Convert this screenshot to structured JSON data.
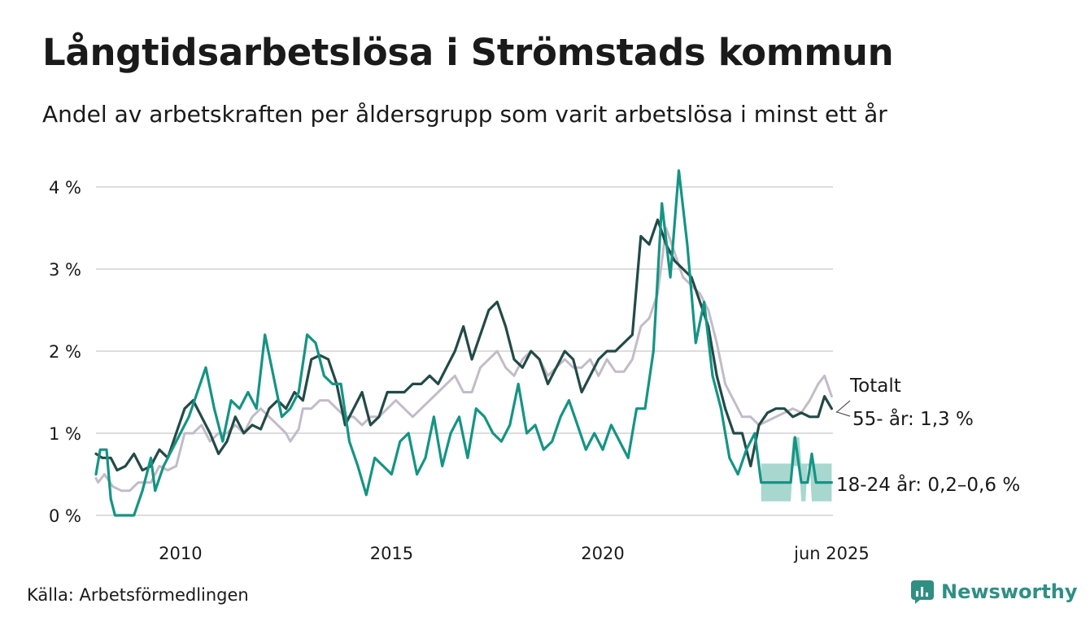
{
  "title": "Långtidsarbetslösa i Strömstads kommun",
  "subtitle": "Andel av arbetskraften per åldersgrupp som varit arbetslösa i minst ett år",
  "source": "Källa: Arbetsförmedlingen",
  "brand": "Newsworthy",
  "colors": {
    "total": "#c2bcc8",
    "age55": "#234a47",
    "age18": "#159484",
    "band": "#9fd3cb",
    "grid": "#dddddd",
    "brand": "#2f8f83"
  },
  "chart_data": {
    "type": "line",
    "title": "Långtidsarbetslösa i Strömstads kommun",
    "subtitle": "Andel av arbetskraften per åldersgrupp som varit arbetslösa i minst ett år",
    "xlim": [
      2008.0,
      2025.45
    ],
    "ylim": [
      0,
      4.2
    ],
    "yticks": [
      0,
      1,
      2,
      3,
      4
    ],
    "ytick_labels": [
      "0 %",
      "1 %",
      "2 %",
      "3 %",
      "4 %"
    ],
    "xticks": [
      2010,
      2015,
      2020,
      2025.42
    ],
    "xtick_labels": [
      "2010",
      "2015",
      "2020",
      "jun 2025"
    ],
    "grid": true,
    "series": [
      {
        "name": "Totalt",
        "key": "total",
        "label": "Totalt",
        "points": [
          [
            2008.0,
            0.45
          ],
          [
            2008.05,
            0.4
          ],
          [
            2008.2,
            0.5
          ],
          [
            2008.4,
            0.35
          ],
          [
            2008.6,
            0.3
          ],
          [
            2008.8,
            0.3
          ],
          [
            2009.0,
            0.4
          ],
          [
            2009.3,
            0.4
          ],
          [
            2009.5,
            0.6
          ],
          [
            2009.7,
            0.55
          ],
          [
            2009.9,
            0.6
          ],
          [
            2010.1,
            1.0
          ],
          [
            2010.3,
            1.0
          ],
          [
            2010.5,
            1.1
          ],
          [
            2010.7,
            0.9
          ],
          [
            2010.9,
            1.0
          ],
          [
            2011.1,
            1.0
          ],
          [
            2011.3,
            1.1
          ],
          [
            2011.5,
            1.0
          ],
          [
            2011.7,
            1.2
          ],
          [
            2011.9,
            1.3
          ],
          [
            2012.1,
            1.2
          ],
          [
            2012.3,
            1.1
          ],
          [
            2012.5,
            1.0
          ],
          [
            2012.6,
            0.9
          ],
          [
            2012.8,
            1.05
          ],
          [
            2012.9,
            1.3
          ],
          [
            2013.1,
            1.3
          ],
          [
            2013.3,
            1.4
          ],
          [
            2013.5,
            1.4
          ],
          [
            2013.7,
            1.3
          ],
          [
            2013.9,
            1.2
          ],
          [
            2014.1,
            1.2
          ],
          [
            2014.3,
            1.1
          ],
          [
            2014.5,
            1.2
          ],
          [
            2014.7,
            1.2
          ],
          [
            2014.9,
            1.3
          ],
          [
            2015.1,
            1.4
          ],
          [
            2015.3,
            1.3
          ],
          [
            2015.5,
            1.2
          ],
          [
            2015.7,
            1.3
          ],
          [
            2015.9,
            1.4
          ],
          [
            2016.1,
            1.5
          ],
          [
            2016.3,
            1.6
          ],
          [
            2016.5,
            1.7
          ],
          [
            2016.7,
            1.5
          ],
          [
            2016.9,
            1.5
          ],
          [
            2017.1,
            1.8
          ],
          [
            2017.3,
            1.9
          ],
          [
            2017.5,
            2.0
          ],
          [
            2017.7,
            1.8
          ],
          [
            2017.9,
            1.7
          ],
          [
            2018.1,
            1.9
          ],
          [
            2018.3,
            2.0
          ],
          [
            2018.5,
            1.9
          ],
          [
            2018.7,
            1.7
          ],
          [
            2018.9,
            1.8
          ],
          [
            2019.1,
            1.9
          ],
          [
            2019.3,
            1.8
          ],
          [
            2019.5,
            1.8
          ],
          [
            2019.7,
            1.9
          ],
          [
            2019.9,
            1.7
          ],
          [
            2020.1,
            1.9
          ],
          [
            2020.3,
            1.75
          ],
          [
            2020.5,
            1.75
          ],
          [
            2020.7,
            1.9
          ],
          [
            2020.9,
            2.3
          ],
          [
            2021.1,
            2.4
          ],
          [
            2021.3,
            2.7
          ],
          [
            2021.5,
            3.5
          ],
          [
            2021.7,
            3.2
          ],
          [
            2021.9,
            2.9
          ],
          [
            2022.1,
            2.8
          ],
          [
            2022.3,
            2.7
          ],
          [
            2022.5,
            2.5
          ],
          [
            2022.7,
            2.1
          ],
          [
            2022.9,
            1.6
          ],
          [
            2023.1,
            1.4
          ],
          [
            2023.3,
            1.2
          ],
          [
            2023.5,
            1.2
          ],
          [
            2023.7,
            1.1
          ],
          [
            2023.9,
            1.15
          ],
          [
            2024.1,
            1.2
          ],
          [
            2024.3,
            1.25
          ],
          [
            2024.5,
            1.3
          ],
          [
            2024.7,
            1.25
          ],
          [
            2024.9,
            1.4
          ],
          [
            2025.1,
            1.6
          ],
          [
            2025.25,
            1.7
          ],
          [
            2025.42,
            1.45
          ]
        ]
      },
      {
        "name": "55- år",
        "key": "age55",
        "label": "55- år: 1,3 %",
        "points": [
          [
            2008.0,
            0.75
          ],
          [
            2008.15,
            0.7
          ],
          [
            2008.35,
            0.7
          ],
          [
            2008.5,
            0.55
          ],
          [
            2008.7,
            0.6
          ],
          [
            2008.9,
            0.75
          ],
          [
            2009.1,
            0.55
          ],
          [
            2009.3,
            0.6
          ],
          [
            2009.5,
            0.8
          ],
          [
            2009.7,
            0.7
          ],
          [
            2009.9,
            1.0
          ],
          [
            2010.1,
            1.3
          ],
          [
            2010.3,
            1.4
          ],
          [
            2010.5,
            1.2
          ],
          [
            2010.7,
            1.0
          ],
          [
            2010.9,
            0.75
          ],
          [
            2011.1,
            0.9
          ],
          [
            2011.3,
            1.2
          ],
          [
            2011.5,
            1.0
          ],
          [
            2011.7,
            1.1
          ],
          [
            2011.9,
            1.05
          ],
          [
            2012.1,
            1.3
          ],
          [
            2012.3,
            1.4
          ],
          [
            2012.5,
            1.3
          ],
          [
            2012.7,
            1.5
          ],
          [
            2012.9,
            1.4
          ],
          [
            2013.1,
            1.9
          ],
          [
            2013.3,
            1.95
          ],
          [
            2013.5,
            1.9
          ],
          [
            2013.7,
            1.6
          ],
          [
            2013.9,
            1.1
          ],
          [
            2014.1,
            1.3
          ],
          [
            2014.3,
            1.5
          ],
          [
            2014.5,
            1.1
          ],
          [
            2014.7,
            1.2
          ],
          [
            2014.9,
            1.5
          ],
          [
            2015.1,
            1.5
          ],
          [
            2015.3,
            1.5
          ],
          [
            2015.5,
            1.6
          ],
          [
            2015.7,
            1.6
          ],
          [
            2015.9,
            1.7
          ],
          [
            2016.1,
            1.6
          ],
          [
            2016.3,
            1.8
          ],
          [
            2016.5,
            2.0
          ],
          [
            2016.7,
            2.3
          ],
          [
            2016.9,
            1.9
          ],
          [
            2017.1,
            2.2
          ],
          [
            2017.3,
            2.5
          ],
          [
            2017.5,
            2.6
          ],
          [
            2017.7,
            2.3
          ],
          [
            2017.9,
            1.9
          ],
          [
            2018.1,
            1.8
          ],
          [
            2018.3,
            2.0
          ],
          [
            2018.5,
            1.9
          ],
          [
            2018.7,
            1.6
          ],
          [
            2018.9,
            1.8
          ],
          [
            2019.1,
            2.0
          ],
          [
            2019.3,
            1.9
          ],
          [
            2019.5,
            1.5
          ],
          [
            2019.7,
            1.7
          ],
          [
            2019.9,
            1.9
          ],
          [
            2020.1,
            2.0
          ],
          [
            2020.3,
            2.0
          ],
          [
            2020.5,
            2.1
          ],
          [
            2020.7,
            2.2
          ],
          [
            2020.9,
            3.4
          ],
          [
            2021.1,
            3.3
          ],
          [
            2021.3,
            3.6
          ],
          [
            2021.5,
            3.3
          ],
          [
            2021.7,
            3.1
          ],
          [
            2021.9,
            3.0
          ],
          [
            2022.1,
            2.9
          ],
          [
            2022.3,
            2.6
          ],
          [
            2022.5,
            2.3
          ],
          [
            2022.7,
            1.7
          ],
          [
            2022.9,
            1.3
          ],
          [
            2023.1,
            1.0
          ],
          [
            2023.3,
            1.0
          ],
          [
            2023.5,
            0.6
          ],
          [
            2023.7,
            1.1
          ],
          [
            2023.9,
            1.25
          ],
          [
            2024.1,
            1.3
          ],
          [
            2024.3,
            1.3
          ],
          [
            2024.5,
            1.2
          ],
          [
            2024.7,
            1.25
          ],
          [
            2024.9,
            1.2
          ],
          [
            2025.1,
            1.2
          ],
          [
            2025.25,
            1.45
          ],
          [
            2025.42,
            1.3
          ]
        ]
      },
      {
        "name": "18-24 år",
        "key": "age18",
        "label": "18-24 år: 0,2–0,6 %",
        "points": [
          [
            2008.0,
            0.5
          ],
          [
            2008.1,
            0.8
          ],
          [
            2008.25,
            0.8
          ],
          [
            2008.35,
            0.2
          ],
          [
            2008.45,
            0.0
          ],
          [
            2008.7,
            0.0
          ],
          [
            2008.9,
            0.0
          ],
          [
            2009.1,
            0.3
          ],
          [
            2009.3,
            0.7
          ],
          [
            2009.4,
            0.3
          ],
          [
            2009.6,
            0.6
          ],
          [
            2009.8,
            0.8
          ],
          [
            2010.0,
            1.0
          ],
          [
            2010.2,
            1.2
          ],
          [
            2010.4,
            1.5
          ],
          [
            2010.6,
            1.8
          ],
          [
            2010.8,
            1.3
          ],
          [
            2011.0,
            0.9
          ],
          [
            2011.2,
            1.4
          ],
          [
            2011.4,
            1.3
          ],
          [
            2011.6,
            1.5
          ],
          [
            2011.8,
            1.3
          ],
          [
            2012.0,
            2.2
          ],
          [
            2012.2,
            1.7
          ],
          [
            2012.4,
            1.2
          ],
          [
            2012.6,
            1.3
          ],
          [
            2012.8,
            1.5
          ],
          [
            2013.0,
            2.2
          ],
          [
            2013.2,
            2.1
          ],
          [
            2013.4,
            1.7
          ],
          [
            2013.6,
            1.6
          ],
          [
            2013.8,
            1.6
          ],
          [
            2014.0,
            0.9
          ],
          [
            2014.2,
            0.6
          ],
          [
            2014.4,
            0.25
          ],
          [
            2014.6,
            0.7
          ],
          [
            2014.8,
            0.6
          ],
          [
            2015.0,
            0.5
          ],
          [
            2015.2,
            0.9
          ],
          [
            2015.4,
            1.0
          ],
          [
            2015.6,
            0.5
          ],
          [
            2015.8,
            0.7
          ],
          [
            2016.0,
            1.2
          ],
          [
            2016.2,
            0.6
          ],
          [
            2016.4,
            1.0
          ],
          [
            2016.6,
            1.2
          ],
          [
            2016.8,
            0.7
          ],
          [
            2017.0,
            1.3
          ],
          [
            2017.2,
            1.2
          ],
          [
            2017.4,
            1.0
          ],
          [
            2017.6,
            0.9
          ],
          [
            2017.8,
            1.1
          ],
          [
            2018.0,
            1.6
          ],
          [
            2018.2,
            1.0
          ],
          [
            2018.4,
            1.1
          ],
          [
            2018.6,
            0.8
          ],
          [
            2018.8,
            0.9
          ],
          [
            2019.0,
            1.2
          ],
          [
            2019.2,
            1.4
          ],
          [
            2019.4,
            1.1
          ],
          [
            2019.6,
            0.8
          ],
          [
            2019.8,
            1.0
          ],
          [
            2020.0,
            0.8
          ],
          [
            2020.2,
            1.1
          ],
          [
            2020.4,
            0.9
          ],
          [
            2020.6,
            0.7
          ],
          [
            2020.8,
            1.3
          ],
          [
            2021.0,
            1.3
          ],
          [
            2021.2,
            2.0
          ],
          [
            2021.4,
            3.8
          ],
          [
            2021.6,
            2.9
          ],
          [
            2021.8,
            4.2
          ],
          [
            2022.0,
            3.3
          ],
          [
            2022.2,
            2.1
          ],
          [
            2022.4,
            2.6
          ],
          [
            2022.6,
            1.7
          ],
          [
            2022.8,
            1.3
          ],
          [
            2023.0,
            0.7
          ],
          [
            2023.2,
            0.5
          ],
          [
            2023.4,
            0.8
          ],
          [
            2023.6,
            1.0
          ],
          [
            2023.75,
            0.4
          ],
          [
            2024.0,
            0.4
          ],
          [
            2024.25,
            0.4
          ],
          [
            2024.45,
            0.4
          ],
          [
            2024.55,
            0.95
          ],
          [
            2024.7,
            0.4
          ],
          [
            2024.85,
            0.4
          ],
          [
            2024.95,
            0.75
          ],
          [
            2025.05,
            0.4
          ],
          [
            2025.25,
            0.4
          ],
          [
            2025.42,
            0.4
          ]
        ]
      }
    ],
    "band": {
      "name": "18-24 år",
      "x_from": 2023.75,
      "points": [
        [
          2023.75,
          0.17,
          0.63
        ],
        [
          2024.45,
          0.17,
          0.63
        ],
        [
          2024.5,
          0.6,
          0.95
        ],
        [
          2024.65,
          0.6,
          0.95
        ],
        [
          2024.7,
          0.17,
          0.63
        ],
        [
          2024.8,
          0.17,
          0.63
        ],
        [
          2024.85,
          0.6,
          0.63
        ],
        [
          2024.9,
          0.6,
          0.63
        ],
        [
          2024.95,
          0.17,
          0.63
        ],
        [
          2025.42,
          0.17,
          0.63
        ]
      ]
    }
  }
}
